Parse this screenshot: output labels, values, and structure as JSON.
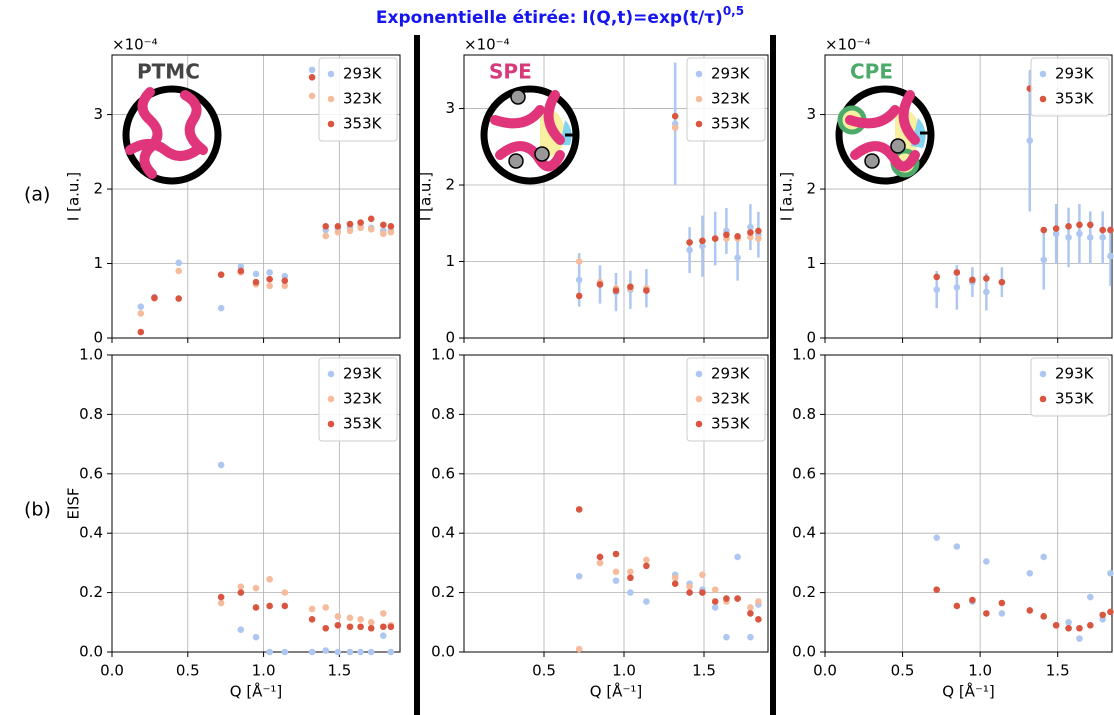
{
  "title": "Exponentielle étirée: I(Q,t)=exp(t/τ)",
  "title_superscript": "0,5",
  "row_labels": [
    "(a)",
    "(b)"
  ],
  "chart_data": [
    {
      "type": "scatter",
      "sample": "PTMC",
      "sample_color": "#444444",
      "y_offset_label": "×10⁻⁴",
      "ylabel": "I [a.u.]",
      "xlim": [
        0,
        1.9
      ],
      "xticks": [
        0,
        0.5,
        1,
        1.5
      ],
      "ylim": [
        0,
        3.8
      ],
      "yticks": [
        0,
        1,
        2,
        3
      ],
      "grid": true,
      "legend": "upper right",
      "x": [
        0.19,
        0.28,
        0.44,
        0.72,
        0.85,
        0.95,
        1.04,
        1.14,
        1.32,
        1.41,
        1.49,
        1.57,
        1.64,
        1.71,
        1.79,
        1.84
      ],
      "series": [
        {
          "name": "293K",
          "color": "#aec7f0",
          "values": [
            0.42,
            0.55,
            1.01,
            0.4,
            0.96,
            0.86,
            0.88,
            0.83,
            3.6,
            1.45,
            1.47,
            1.48,
            1.5,
            1.48,
            1.44,
            1.44
          ]
        },
        {
          "name": "323K",
          "color": "#f5bb9c",
          "values": [
            0.33,
            0.53,
            0.9,
            0.85,
            0.88,
            0.72,
            0.7,
            0.7,
            3.25,
            1.37,
            1.42,
            1.44,
            1.48,
            1.46,
            1.4,
            1.42
          ]
        },
        {
          "name": "353K",
          "color": "#d9553f",
          "values": [
            0.08,
            0.54,
            0.53,
            0.85,
            0.9,
            0.75,
            0.79,
            0.77,
            3.5,
            1.5,
            1.5,
            1.53,
            1.55,
            1.6,
            1.52,
            1.5
          ]
        }
      ]
    },
    {
      "type": "scatter",
      "sample": "SPE",
      "sample_color": "#d63a7a",
      "y_offset_label": "×10⁻⁴",
      "ylabel": "I [a.u.]",
      "xlim": [
        0,
        1.9
      ],
      "xticks": [
        0,
        0.5,
        1,
        1.5
      ],
      "ylim": [
        0,
        3.7
      ],
      "yticks": [
        0,
        1,
        2,
        3
      ],
      "grid": true,
      "legend": "upper right",
      "x": [
        0.72,
        0.85,
        0.95,
        1.04,
        1.14,
        1.32,
        1.41,
        1.49,
        1.57,
        1.64,
        1.71,
        1.79,
        1.84
      ],
      "series": [
        {
          "name": "293K",
          "color": "#aec7f0",
          "values": [
            0.76,
            0.7,
            0.6,
            0.63,
            0.65,
            2.8,
            1.15,
            1.2,
            1.3,
            1.4,
            1.05,
            1.45,
            1.35
          ],
          "errors": [
            0.35,
            0.25,
            0.25,
            0.25,
            0.25,
            0.8,
            0.3,
            0.4,
            0.35,
            0.3,
            0.3,
            0.3,
            0.3
          ]
        },
        {
          "name": "323K",
          "color": "#f5bb9c",
          "values": [
            1.0,
            0.73,
            0.65,
            0.65,
            0.65,
            2.75,
            1.25,
            1.27,
            1.3,
            1.3,
            1.3,
            1.32,
            1.3
          ]
        },
        {
          "name": "353K",
          "color": "#d9553f",
          "values": [
            0.55,
            0.7,
            0.62,
            0.67,
            0.62,
            2.9,
            1.25,
            1.27,
            1.3,
            1.35,
            1.33,
            1.38,
            1.4
          ]
        }
      ]
    },
    {
      "type": "scatter",
      "sample": "CPE",
      "sample_color": "#4caa6a",
      "y_offset_label": "×10⁻⁴",
      "ylabel": "I [a.u.]",
      "xlim": [
        0,
        1.85
      ],
      "xticks": [
        0,
        0.5,
        1,
        1.5
      ],
      "ylim": [
        0,
        3.8
      ],
      "yticks": [
        0,
        1,
        2,
        3
      ],
      "grid": true,
      "legend": "upper right",
      "x": [
        0.72,
        0.85,
        0.95,
        1.04,
        1.14,
        1.32,
        1.41,
        1.49,
        1.57,
        1.64,
        1.71,
        1.79,
        1.84
      ],
      "series": [
        {
          "name": "293K",
          "color": "#aec7f0",
          "values": [
            0.65,
            0.68,
            0.75,
            0.62,
            0.75,
            2.65,
            1.05,
            1.4,
            1.35,
            1.4,
            1.35,
            1.35,
            1.1
          ],
          "errors": [
            0.25,
            0.3,
            0.2,
            0.25,
            0.2,
            0.95,
            0.4,
            0.4,
            0.4,
            0.4,
            0.35,
            0.35,
            0.4
          ]
        },
        {
          "name": "353K",
          "color": "#d9553f",
          "values": [
            0.82,
            0.88,
            0.78,
            0.8,
            0.75,
            3.35,
            1.45,
            1.47,
            1.5,
            1.52,
            1.52,
            1.45,
            1.45
          ]
        }
      ]
    },
    {
      "type": "scatter",
      "ylabel": "EISF",
      "xlabel": "Q [Å⁻¹]",
      "xlim": [
        0,
        1.9
      ],
      "xticks": [
        {
          "value": 0,
          "label": "0.0"
        },
        {
          "value": 0.5,
          "label": "0.5"
        },
        {
          "value": 1,
          "label": "1.0"
        },
        {
          "value": 1.5,
          "label": "1.5"
        }
      ],
      "ylim": [
        0,
        1
      ],
      "yticks": [
        {
          "value": 0,
          "label": "0.0"
        },
        {
          "value": 0.2,
          "label": "0.2"
        },
        {
          "value": 0.4,
          "label": "0.4"
        },
        {
          "value": 0.6,
          "label": "0.6"
        },
        {
          "value": 0.8,
          "label": "0.8"
        },
        {
          "value": 1,
          "label": "1.0"
        }
      ],
      "grid": true,
      "legend": "upper right",
      "x": [
        0.72,
        0.85,
        0.95,
        1.04,
        1.14,
        1.32,
        1.41,
        1.49,
        1.57,
        1.64,
        1.71,
        1.79,
        1.84
      ],
      "series": [
        {
          "name": "293K",
          "color": "#aec7f0",
          "values": [
            0.63,
            0.075,
            0.05,
            0.0,
            0.0,
            0.0,
            0.005,
            0.0,
            0.0,
            0.0,
            0.0,
            0.055,
            0.0
          ]
        },
        {
          "name": "323K",
          "color": "#f5bb9c",
          "values": [
            0.165,
            0.22,
            0.215,
            0.245,
            0.2,
            0.145,
            0.15,
            0.12,
            0.115,
            0.11,
            0.1,
            0.13,
            0.09
          ]
        },
        {
          "name": "353K",
          "color": "#d9553f",
          "values": [
            0.185,
            0.2,
            0.15,
            0.155,
            0.155,
            0.11,
            0.08,
            0.09,
            0.085,
            0.085,
            0.08,
            0.085,
            0.085
          ]
        }
      ]
    },
    {
      "type": "scatter",
      "xlabel": "Q [Å⁻¹]",
      "xlim": [
        0,
        1.9
      ],
      "xticks": [
        {
          "value": 0.5,
          "label": "0.5"
        },
        {
          "value": 1,
          "label": "1.0"
        },
        {
          "value": 1.5,
          "label": "1.5"
        }
      ],
      "ylim": [
        0,
        1
      ],
      "yticks": [
        {
          "value": 0,
          "label": "0.0"
        },
        {
          "value": 0.2,
          "label": "0.2"
        },
        {
          "value": 0.4,
          "label": "0.4"
        },
        {
          "value": 0.6,
          "label": "0.6"
        },
        {
          "value": 0.8,
          "label": "0.8"
        },
        {
          "value": 1,
          "label": "1.0"
        }
      ],
      "grid": true,
      "legend": "upper right",
      "x": [
        0.72,
        0.85,
        0.95,
        1.04,
        1.14,
        1.32,
        1.41,
        1.49,
        1.57,
        1.64,
        1.71,
        1.79,
        1.84
      ],
      "series": [
        {
          "name": "293K",
          "color": "#aec7f0",
          "values": [
            0.255,
            0.3,
            0.24,
            0.2,
            0.17,
            0.26,
            0.23,
            0.21,
            0.15,
            0.05,
            0.32,
            0.05,
            0.16
          ]
        },
        {
          "name": "323K",
          "color": "#f5bb9c",
          "values": [
            0.01,
            0.3,
            0.27,
            0.27,
            0.31,
            0.25,
            0.22,
            0.26,
            0.21,
            0.17,
            0.18,
            0.15,
            0.17
          ]
        },
        {
          "name": "353K",
          "color": "#d9553f",
          "values": [
            0.48,
            0.32,
            0.33,
            0.25,
            0.29,
            0.23,
            0.2,
            0.2,
            0.17,
            0.18,
            0.18,
            0.13,
            0.11
          ]
        }
      ]
    },
    {
      "type": "scatter",
      "xlabel": "Q [Å⁻¹]",
      "xlim": [
        0,
        1.85
      ],
      "xticks": [
        {
          "value": 0,
          "label": "0.0"
        },
        {
          "value": 0.5,
          "label": "0.5"
        },
        {
          "value": 1,
          "label": "1.0"
        },
        {
          "value": 1.5,
          "label": "1.5"
        }
      ],
      "ylim": [
        0,
        1
      ],
      "yticks": [
        {
          "value": 0,
          "label": "0.0"
        },
        {
          "value": 0.2,
          "label": "0.2"
        },
        {
          "value": 0.4,
          "label": "0.4"
        },
        {
          "value": 0.6,
          "label": "0.6"
        },
        {
          "value": 0.8,
          "label": "0.8"
        },
        {
          "value": 1,
          "label": "1.0"
        }
      ],
      "grid": true,
      "legend": "upper right",
      "x": [
        0.72,
        0.85,
        0.95,
        1.04,
        1.14,
        1.32,
        1.41,
        1.49,
        1.57,
        1.64,
        1.71,
        1.79,
        1.84
      ],
      "series": [
        {
          "name": "293K",
          "color": "#aec7f0",
          "values": [
            0.385,
            0.355,
            0.17,
            0.305,
            0.13,
            0.265,
            0.32,
            0.09,
            0.1,
            0.045,
            0.185,
            0.11,
            0.265
          ]
        },
        {
          "name": "353K",
          "color": "#d9553f",
          "values": [
            0.21,
            0.155,
            0.175,
            0.13,
            0.165,
            0.14,
            0.12,
            0.09,
            0.08,
            0.08,
            0.09,
            0.125,
            0.135
          ]
        }
      ]
    }
  ]
}
